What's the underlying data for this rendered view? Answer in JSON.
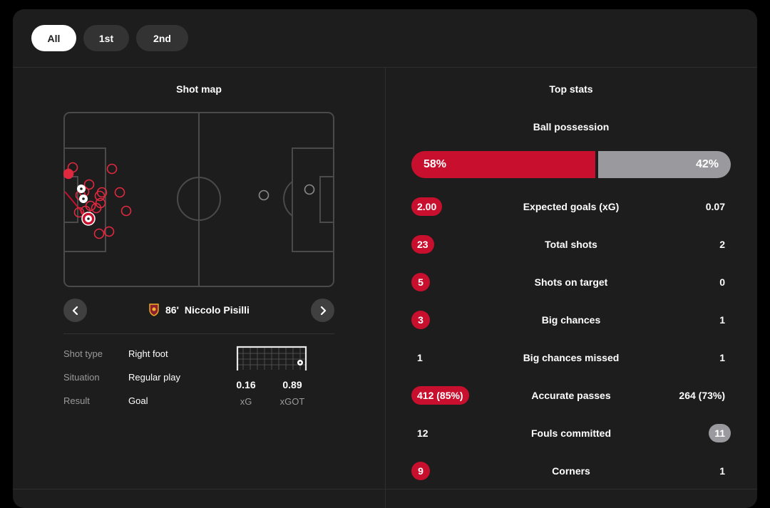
{
  "tabs": [
    {
      "label": "All",
      "active": true
    },
    {
      "label": "1st",
      "active": false
    },
    {
      "label": "2nd",
      "active": false
    }
  ],
  "shot_map": {
    "title": "Shot map",
    "selected_shot": {
      "minute": "86'",
      "player": "Niccolo Pisilli",
      "details": [
        {
          "label": "Shot type",
          "value": "Right foot"
        },
        {
          "label": "Situation",
          "value": "Regular play"
        },
        {
          "label": "Result",
          "value": "Goal"
        }
      ],
      "xg": {
        "value": "0.16",
        "label": "xG"
      },
      "xgot": {
        "value": "0.89",
        "label": "xGOT"
      }
    }
  },
  "top_stats": {
    "title": "Top stats",
    "possession": {
      "label": "Ball possession",
      "home": "58%",
      "away": "42%",
      "home_pct": 58
    },
    "rows": [
      {
        "label": "Expected goals (xG)",
        "home": "2.00",
        "away": "0.07",
        "highlight": "home"
      },
      {
        "label": "Total shots",
        "home": "23",
        "away": "2",
        "highlight": "home"
      },
      {
        "label": "Shots on target",
        "home": "5",
        "away": "0",
        "highlight": "home"
      },
      {
        "label": "Big chances",
        "home": "3",
        "away": "1",
        "highlight": "home"
      },
      {
        "label": "Big chances missed",
        "home": "1",
        "away": "1",
        "highlight": "none"
      },
      {
        "label": "Accurate passes",
        "home": "412 (85%)",
        "away": "264 (73%)",
        "highlight": "home"
      },
      {
        "label": "Fouls committed",
        "home": "12",
        "away": "11",
        "highlight": "away"
      },
      {
        "label": "Corners",
        "home": "9",
        "away": "1",
        "highlight": "home"
      }
    ]
  },
  "colors": {
    "home": "#c8102e",
    "away": "#9a9a9e",
    "background": "#1d1d1d"
  },
  "icons": [
    "chevron-left-icon",
    "chevron-right-icon",
    "team-crest-icon",
    "ball-icon",
    "goal-frame-icon"
  ]
}
